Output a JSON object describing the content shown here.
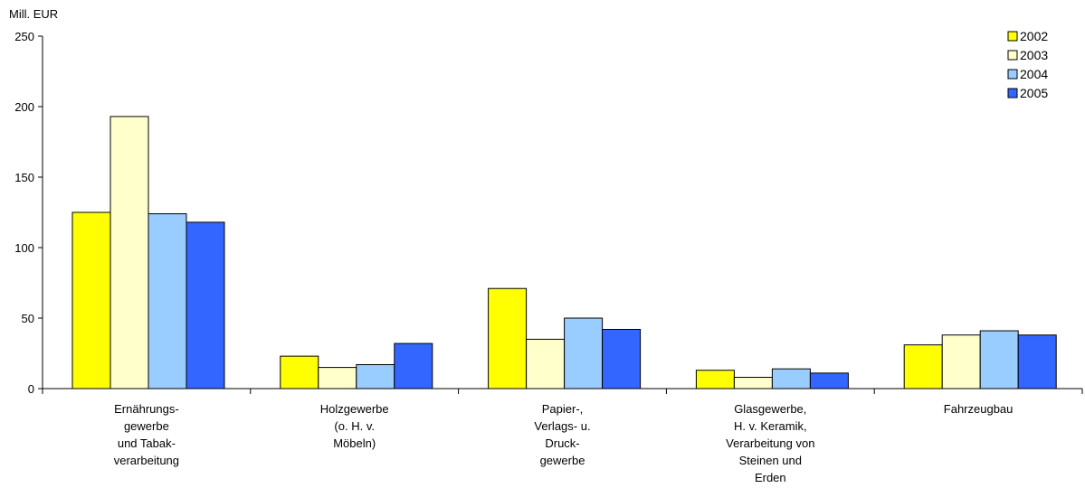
{
  "chart_data": {
    "type": "bar",
    "title": "",
    "ylabel": "Mill. EUR",
    "xlabel": "",
    "ylim": [
      0,
      250
    ],
    "yticks": [
      0,
      50,
      100,
      150,
      200,
      250
    ],
    "grid": false,
    "legend_position": "top-right",
    "categories": [
      [
        "Ernährungs-",
        "gewerbe",
        "und Tabak-",
        "verarbeitung"
      ],
      [
        "Holzgewerbe",
        "(o. H. v.",
        "Möbeln)"
      ],
      [
        "Papier-,",
        "Verlags- u.",
        "Druck-",
        "gewerbe"
      ],
      [
        "Glasgewerbe,",
        "H. v. Keramik,",
        "Verarbeitung von",
        "Steinen und",
        "Erden"
      ],
      [
        "Fahrzeugbau"
      ]
    ],
    "series": [
      {
        "name": "2002",
        "color": "#FFFF00",
        "values": [
          125,
          23,
          71,
          13,
          31
        ]
      },
      {
        "name": "2003",
        "color": "#FFFFCC",
        "values": [
          193,
          15,
          35,
          8,
          38
        ]
      },
      {
        "name": "2004",
        "color": "#99CCFF",
        "values": [
          124,
          17,
          50,
          14,
          41
        ]
      },
      {
        "name": "2005",
        "color": "#3366FF",
        "values": [
          118,
          32,
          42,
          11,
          38
        ]
      }
    ]
  }
}
